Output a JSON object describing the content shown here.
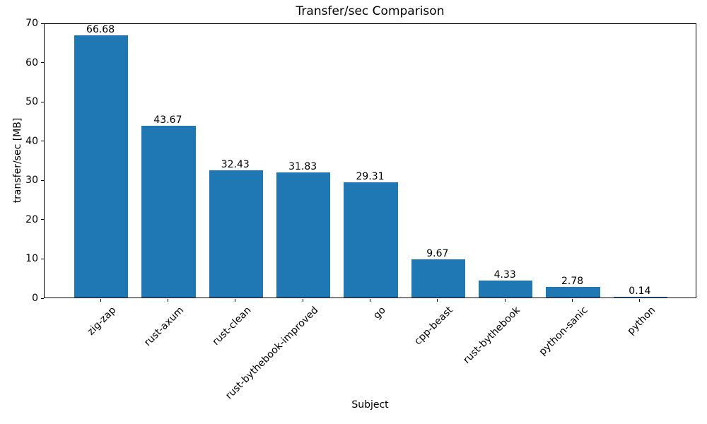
{
  "chart_data": {
    "type": "bar",
    "title": "Transfer/sec Comparison",
    "xlabel": "Subject",
    "ylabel": "transfer/sec [MB]",
    "categories": [
      "zig-zap",
      "rust-axum",
      "rust-clean",
      "rust-bythebook-improved",
      "go",
      "cpp-beast",
      "rust-bythebook",
      "python-sanic",
      "python"
    ],
    "values": [
      66.68,
      43.67,
      32.43,
      31.83,
      29.31,
      9.67,
      4.33,
      2.78,
      0.14
    ],
    "bar_value_labels": [
      "66.68",
      "43.67",
      "32.43",
      "31.83",
      "29.31",
      "9.67",
      "4.33",
      "2.78",
      "0.14"
    ],
    "ylim": [
      0,
      70
    ],
    "yticks": [
      0,
      10,
      20,
      30,
      40,
      50,
      60,
      70
    ],
    "bar_color": "#1f77b4",
    "grid": false,
    "legend": null,
    "xtick_rotation_deg": 45
  }
}
